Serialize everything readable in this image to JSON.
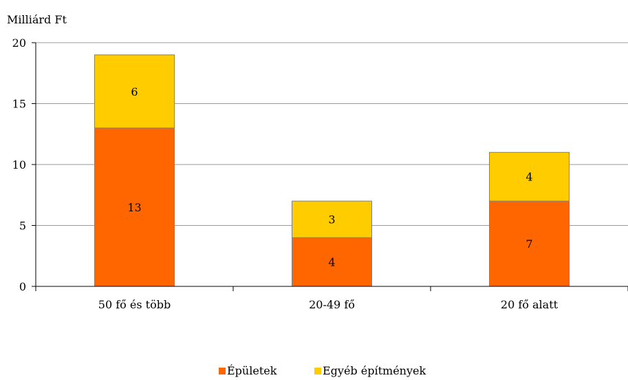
{
  "chart_data": {
    "type": "bar",
    "stacked": true,
    "title": "",
    "ylabel": "Milliárd Ft",
    "xlabel": "",
    "ylim": [
      0,
      20
    ],
    "yticks": [
      0,
      5,
      10,
      15,
      20
    ],
    "grid": true,
    "legend_position": "bottom",
    "categories": [
      "50 fő és több",
      "20-49 fő",
      "20 fő alatt"
    ],
    "series": [
      {
        "name": "Épületek",
        "color": "#ff6600",
        "values": [
          13,
          4,
          7
        ]
      },
      {
        "name": "Egyéb építmények",
        "color": "#ffcc00",
        "values": [
          6,
          3,
          4
        ]
      }
    ]
  }
}
